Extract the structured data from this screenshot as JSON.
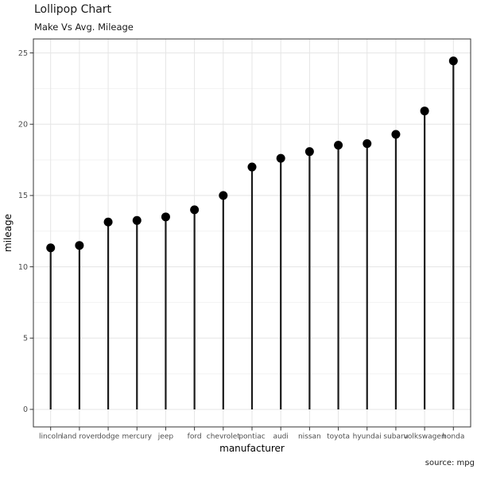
{
  "header": {
    "title": "Lollipop Chart",
    "subtitle": "Make Vs Avg. Mileage"
  },
  "footer": {
    "caption": "source: mpg"
  },
  "chart_data": {
    "type": "lollipop",
    "title": "Lollipop Chart",
    "subtitle": "Make Vs Avg. Mileage",
    "xlabel": "manufacturer",
    "ylabel": "mileage",
    "caption": "source: mpg",
    "categories": [
      "lincoln",
      "land rover",
      "dodge",
      "mercury",
      "jeep",
      "ford",
      "chevrolet",
      "pontiac",
      "audi",
      "nissan",
      "toyota",
      "hyundai",
      "subaru",
      "volkswagen",
      "honda"
    ],
    "values": [
      11.33,
      11.5,
      13.14,
      13.25,
      13.5,
      14.0,
      15.0,
      17.0,
      17.61,
      18.08,
      18.53,
      18.64,
      19.29,
      20.93,
      24.44
    ],
    "yticks": [
      0,
      5,
      10,
      15,
      20,
      25
    ],
    "yticks_minor": [
      2.5,
      7.5,
      12.5,
      17.5,
      22.5
    ],
    "ylim": [
      -1.23,
      25.98
    ],
    "grid": true,
    "legend_position": "none",
    "colors": {
      "point": "#000000",
      "stem": "#1a1a1a",
      "grid_major": "#e5e5e5",
      "grid_minor": "#f2f2f2",
      "panel_border": "#333333",
      "tick_mark": "#333333",
      "tick_label": "#4d4d4d",
      "background": "#ffffff"
    }
  }
}
